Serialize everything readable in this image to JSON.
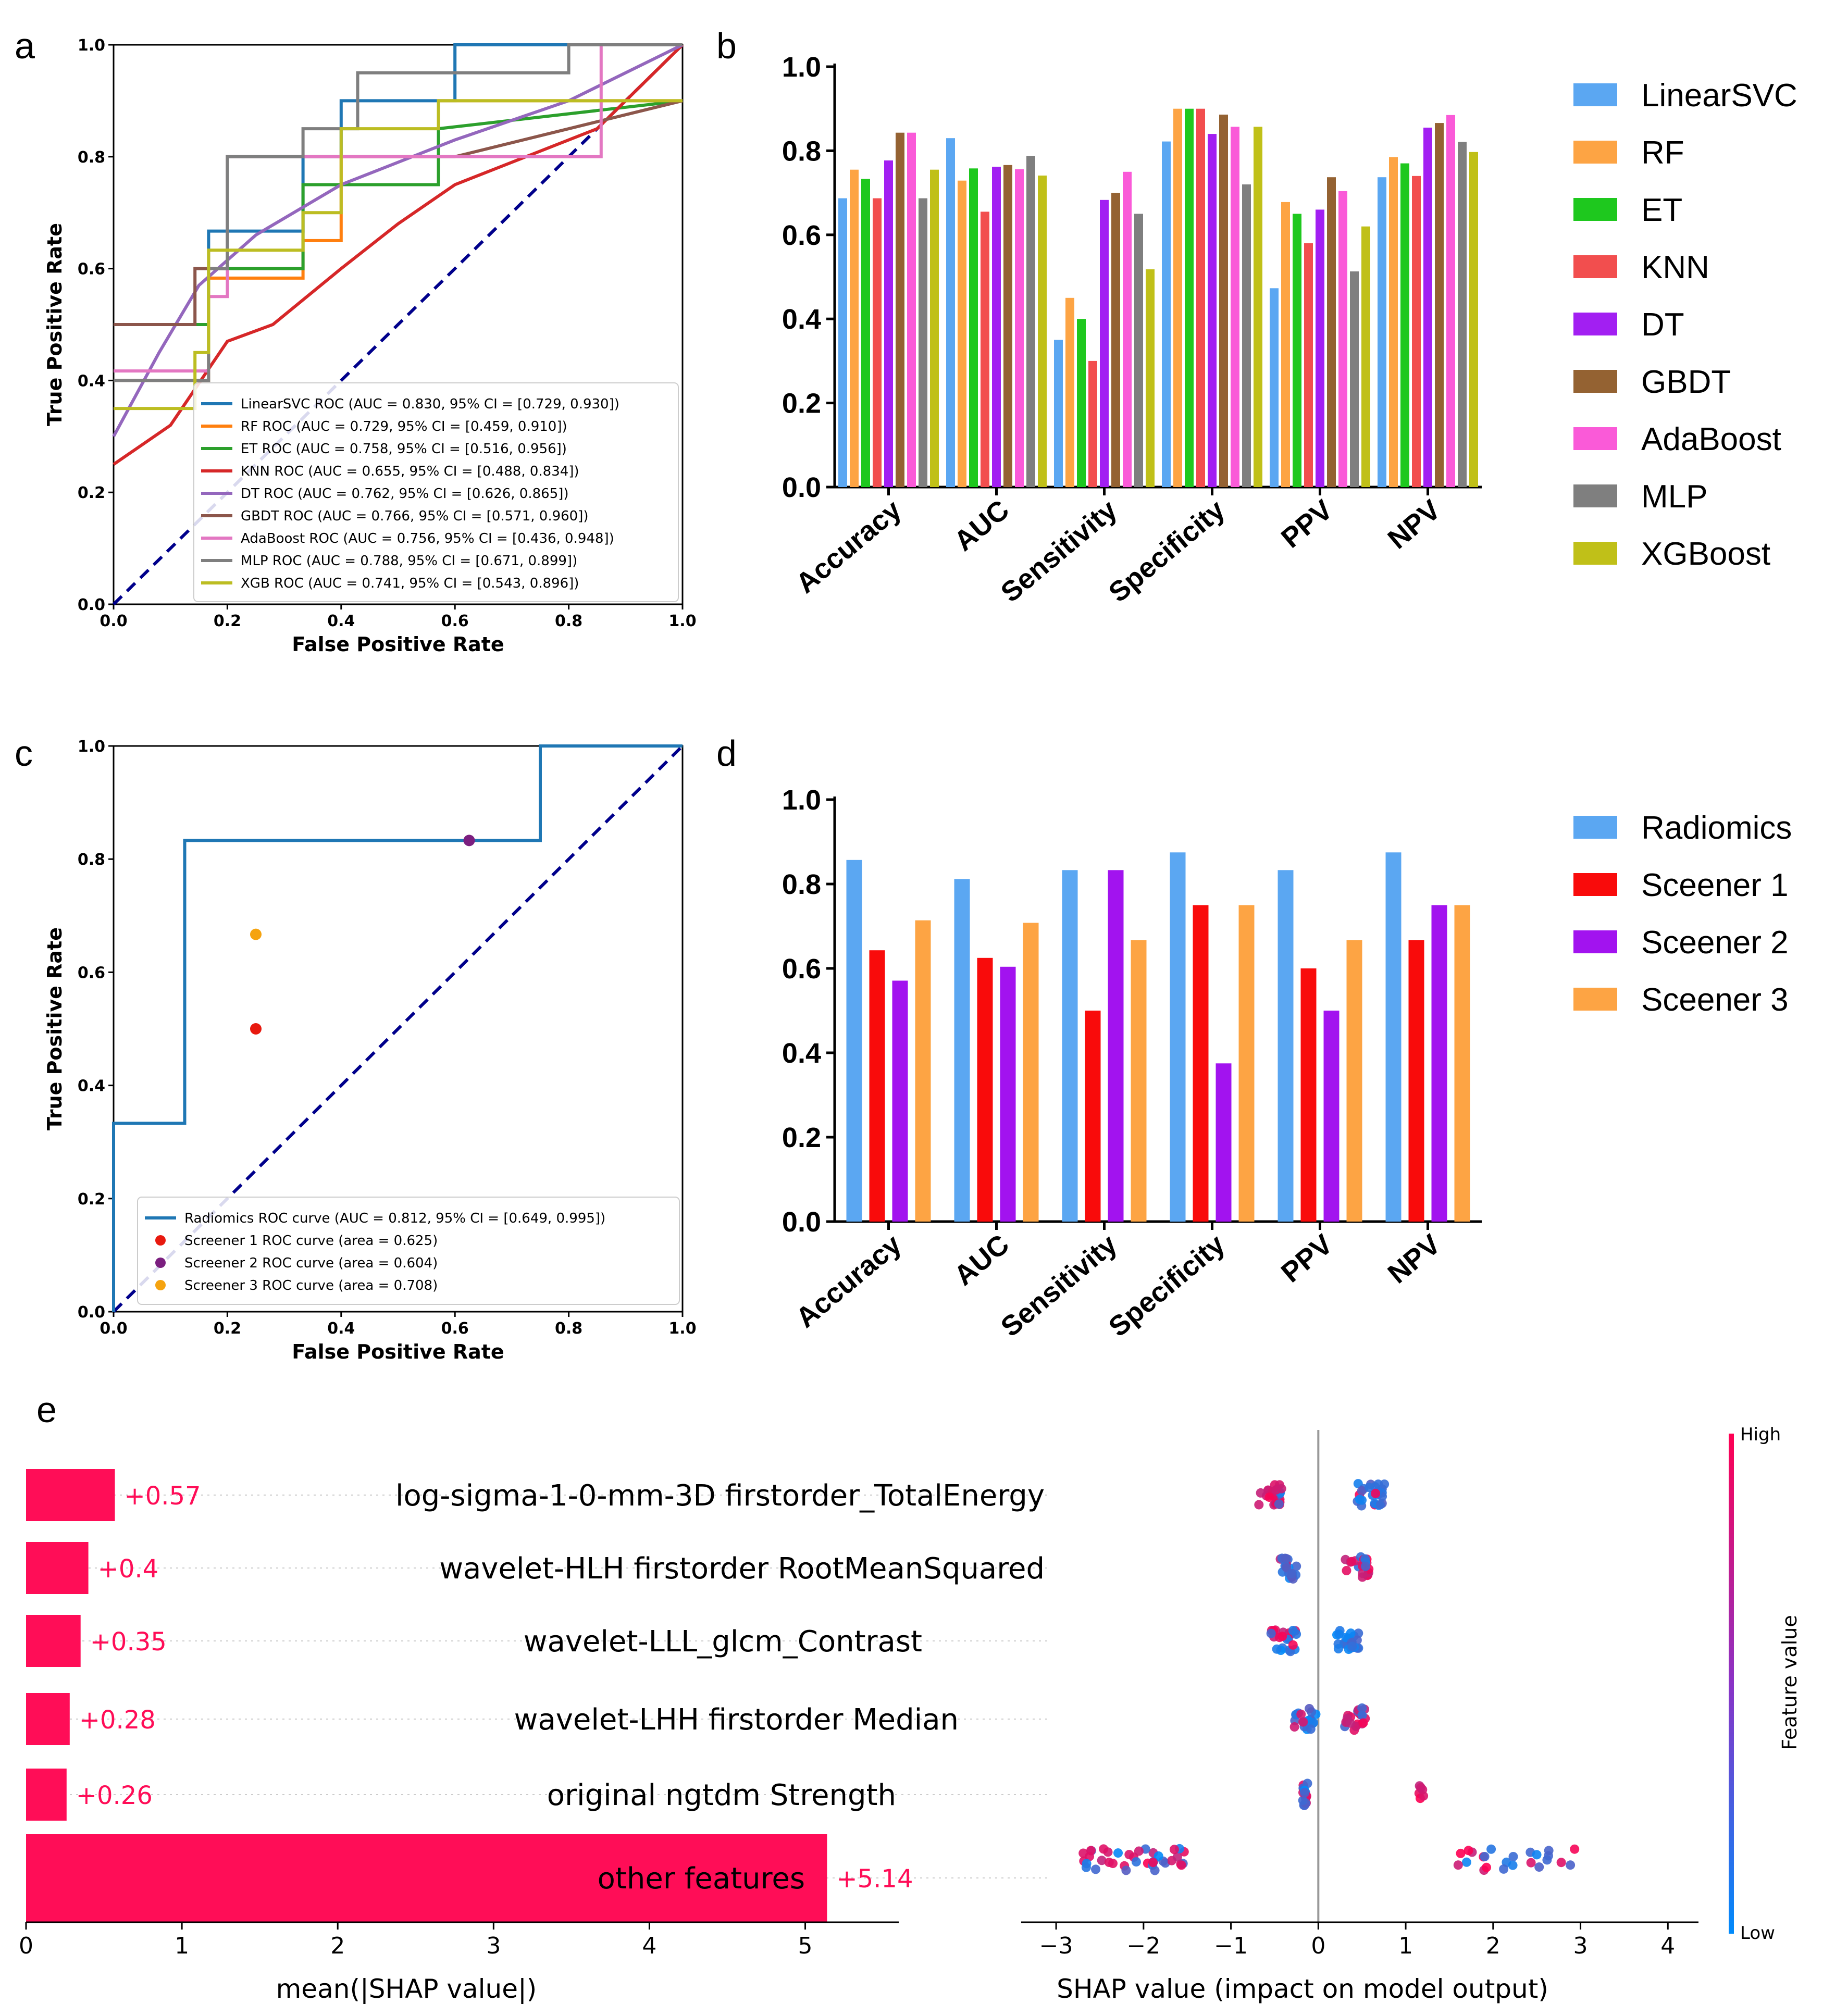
{
  "panel_letters": [
    "a",
    "b",
    "c",
    "d",
    "e"
  ],
  "chart_data": [
    {
      "panel": "a",
      "type": "line",
      "xlabel": "False Positive Rate",
      "ylabel": "True Positive Rate",
      "xlim": [
        0,
        1
      ],
      "ylim": [
        0,
        1
      ],
      "xticks": [
        "0.0",
        "0.2",
        "0.4",
        "0.6",
        "0.8",
        "1.0"
      ],
      "yticks": [
        "0.0",
        "0.2",
        "0.4",
        "0.6",
        "0.8",
        "1.0"
      ],
      "series": [
        {
          "name": "LinearSVC ROC (AUC = 0.830, 95% CI = [0.729, 0.930])",
          "color": "#1f77b4",
          "points": [
            [
              0,
              0.4
            ],
            [
              0.167,
              0.4
            ],
            [
              0.167,
              0.667
            ],
            [
              0.333,
              0.667
            ],
            [
              0.333,
              0.8
            ],
            [
              0.4,
              0.8
            ],
            [
              0.4,
              0.9
            ],
            [
              0.6,
              0.9
            ],
            [
              0.6,
              1.0
            ],
            [
              1.0,
              1.0
            ]
          ]
        },
        {
          "name": "RF ROC (AUC = 0.729, 95% CI = [0.459, 0.910])",
          "color": "#ff7f0e",
          "points": [
            [
              0,
              0.4
            ],
            [
              0.167,
              0.4
            ],
            [
              0.167,
              0.583
            ],
            [
              0.333,
              0.583
            ],
            [
              0.333,
              0.65
            ],
            [
              0.4,
              0.65
            ],
            [
              0.4,
              0.8
            ],
            [
              0.571,
              0.8
            ],
            [
              0.571,
              0.9
            ],
            [
              1.0,
              0.9
            ]
          ]
        },
        {
          "name": "ET ROC (AUC = 0.758, 95% CI = [0.516, 0.956])",
          "color": "#2ca02c",
          "points": [
            [
              0,
              0.5
            ],
            [
              0.167,
              0.5
            ],
            [
              0.167,
              0.6
            ],
            [
              0.333,
              0.6
            ],
            [
              0.333,
              0.75
            ],
            [
              0.571,
              0.75
            ],
            [
              0.571,
              0.85
            ],
            [
              1.0,
              0.9
            ]
          ]
        },
        {
          "name": "KNN ROC (AUC = 0.655, 95% CI = [0.488, 0.834])",
          "color": "#d62728",
          "points": [
            [
              0,
              0.25
            ],
            [
              0.1,
              0.32
            ],
            [
              0.2,
              0.47
            ],
            [
              0.28,
              0.5
            ],
            [
              0.4,
              0.6
            ],
            [
              0.5,
              0.68
            ],
            [
              0.6,
              0.75
            ],
            [
              0.7,
              0.79
            ],
            [
              0.85,
              0.85
            ],
            [
              1.0,
              1.0
            ]
          ]
        },
        {
          "name": "DT ROC (AUC = 0.762, 95% CI = [0.626, 0.865])",
          "color": "#9467bd",
          "points": [
            [
              0,
              0.3
            ],
            [
              0.08,
              0.45
            ],
            [
              0.15,
              0.57
            ],
            [
              0.25,
              0.66
            ],
            [
              0.4,
              0.75
            ],
            [
              0.6,
              0.83
            ],
            [
              0.8,
              0.9
            ],
            [
              1.0,
              1.0
            ]
          ]
        },
        {
          "name": "GBDT ROC (AUC = 0.766, 95% CI = [0.571, 0.960])",
          "color": "#8c564b",
          "points": [
            [
              0,
              0.5
            ],
            [
              0.143,
              0.5
            ],
            [
              0.143,
              0.6
            ],
            [
              0.2,
              0.6
            ],
            [
              0.2,
              0.8
            ],
            [
              0.6,
              0.8
            ],
            [
              1.0,
              0.9
            ]
          ]
        },
        {
          "name": "AdaBoost ROC (AUC = 0.756, 95% CI = [0.436, 0.948])",
          "color": "#e377c2",
          "points": [
            [
              0,
              0.417
            ],
            [
              0.167,
              0.417
            ],
            [
              0.167,
              0.55
            ],
            [
              0.2,
              0.55
            ],
            [
              0.2,
              0.8
            ],
            [
              0.857,
              0.8
            ],
            [
              0.857,
              1.0
            ],
            [
              1.0,
              1.0
            ]
          ]
        },
        {
          "name": "MLP ROC (AUC = 0.788, 95% CI = [0.671, 0.899])",
          "color": "#7f7f7f",
          "points": [
            [
              0,
              0.4
            ],
            [
              0.167,
              0.4
            ],
            [
              0.167,
              0.6
            ],
            [
              0.2,
              0.6
            ],
            [
              0.2,
              0.8
            ],
            [
              0.333,
              0.8
            ],
            [
              0.333,
              0.85
            ],
            [
              0.429,
              0.85
            ],
            [
              0.429,
              0.95
            ],
            [
              0.8,
              0.95
            ],
            [
              0.8,
              1.0
            ],
            [
              1.0,
              1.0
            ]
          ]
        },
        {
          "name": "XGB ROC (AUC = 0.741, 95% CI = [0.543, 0.896])",
          "color": "#bcbd22",
          "points": [
            [
              0,
              0.35
            ],
            [
              0.143,
              0.35
            ],
            [
              0.143,
              0.45
            ],
            [
              0.167,
              0.45
            ],
            [
              0.167,
              0.633
            ],
            [
              0.333,
              0.633
            ],
            [
              0.333,
              0.7
            ],
            [
              0.4,
              0.7
            ],
            [
              0.4,
              0.85
            ],
            [
              0.571,
              0.85
            ],
            [
              0.571,
              0.9
            ],
            [
              1.0,
              0.9
            ]
          ]
        }
      ],
      "diagonal_color": "#00008b"
    },
    {
      "panel": "b",
      "type": "bar",
      "categories": [
        "Accuracy",
        "AUC",
        "Sensitivity",
        "Specificity",
        "PPV",
        "NPV"
      ],
      "ylim": [
        0,
        1
      ],
      "yticks": [
        "0.0",
        "0.2",
        "0.4",
        "0.6",
        "0.8",
        "1.0"
      ],
      "series": [
        {
          "name": "LinearSVC",
          "color": "#5ba7f2",
          "values": [
            0.687,
            0.83,
            0.35,
            0.822,
            0.473,
            0.737
          ]
        },
        {
          "name": "RF",
          "color": "#fda444",
          "values": [
            0.755,
            0.729,
            0.45,
            0.9,
            0.678,
            0.785
          ]
        },
        {
          "name": "ET",
          "color": "#1ec81e",
          "values": [
            0.733,
            0.758,
            0.4,
            0.9,
            0.65,
            0.77
          ]
        },
        {
          "name": "KNN",
          "color": "#f24e4e",
          "values": [
            0.687,
            0.655,
            0.3,
            0.9,
            0.58,
            0.74
          ]
        },
        {
          "name": "DT",
          "color": "#a21ff2",
          "values": [
            0.777,
            0.762,
            0.683,
            0.84,
            0.66,
            0.855
          ]
        },
        {
          "name": "GBDT",
          "color": "#946232",
          "values": [
            0.843,
            0.766,
            0.7,
            0.886,
            0.737,
            0.866
          ]
        },
        {
          "name": "AdaBoost",
          "color": "#fa5ad8",
          "values": [
            0.843,
            0.756,
            0.75,
            0.857,
            0.704,
            0.885
          ]
        },
        {
          "name": "MLP",
          "color": "#7f7f7f",
          "values": [
            0.687,
            0.788,
            0.65,
            0.72,
            0.513,
            0.821
          ]
        },
        {
          "name": "XGBoost",
          "color": "#c0c018",
          "values": [
            0.755,
            0.741,
            0.518,
            0.857,
            0.62,
            0.797
          ]
        }
      ]
    },
    {
      "panel": "c",
      "type": "line",
      "xlabel": "False Positive Rate",
      "ylabel": "True Positive Rate",
      "xlim": [
        0,
        1
      ],
      "ylim": [
        0,
        1
      ],
      "xticks": [
        "0.0",
        "0.2",
        "0.4",
        "0.6",
        "0.8",
        "1.0"
      ],
      "yticks": [
        "0.0",
        "0.2",
        "0.4",
        "0.6",
        "0.8",
        "1.0"
      ],
      "series": [
        {
          "name": "Radiomics ROC curve (AUC = 0.812, 95% CI = [0.649, 0.995])",
          "color": "#1f77b4",
          "points": [
            [
              0,
              0
            ],
            [
              0,
              0.333
            ],
            [
              0.125,
              0.333
            ],
            [
              0.125,
              0.833
            ],
            [
              0.75,
              0.833
            ],
            [
              0.75,
              1.0
            ],
            [
              1.0,
              1.0
            ]
          ]
        }
      ],
      "points": [
        {
          "name": "Screener 1 ROC curve (area = 0.625)",
          "color": "#e8190f",
          "x": 0.25,
          "y": 0.5
        },
        {
          "name": "Screener 2 ROC curve (area = 0.604)",
          "color": "#7b1f7f",
          "x": 0.625,
          "y": 0.833
        },
        {
          "name": "Screener 3 ROC curve (area = 0.708)",
          "color": "#f5a30f",
          "x": 0.25,
          "y": 0.667
        }
      ],
      "diagonal_color": "#00008b"
    },
    {
      "panel": "d",
      "type": "bar",
      "categories": [
        "Accuracy",
        "AUC",
        "Sensitivity",
        "Specificity",
        "PPV",
        "NPV"
      ],
      "ylim": [
        0,
        1
      ],
      "yticks": [
        "0.0",
        "0.2",
        "0.4",
        "0.6",
        "0.8",
        "1.0"
      ],
      "series": [
        {
          "name": "Radiomics",
          "color": "#5ba7f2",
          "values": [
            0.857,
            0.812,
            0.833,
            0.875,
            0.833,
            0.875
          ]
        },
        {
          "name": "Sceener 1",
          "color": "#f90b0b",
          "values": [
            0.643,
            0.625,
            0.5,
            0.75,
            0.6,
            0.667
          ]
        },
        {
          "name": "Sceener 2",
          "color": "#a213ef",
          "values": [
            0.571,
            0.604,
            0.833,
            0.375,
            0.5,
            0.75
          ]
        },
        {
          "name": "Sceener 3",
          "color": "#fda444",
          "values": [
            0.714,
            0.708,
            0.667,
            0.75,
            0.667,
            0.75
          ]
        }
      ]
    },
    {
      "panel": "e-bar",
      "type": "bar",
      "orientation": "horizontal",
      "xlabel": "mean(|SHAP value|)",
      "xlim": [
        0,
        5.6
      ],
      "xticks": [
        "0",
        "1",
        "2",
        "3",
        "4",
        "5"
      ],
      "color": "#ff0d57",
      "categories": [
        "log-sigma-1-0-mm-3D firstorder_TotalEnergy",
        "wavelet-HLH firstorder RootMeanSquared",
        "wavelet-LLL_glcm_Contrast",
        "wavelet-LHH firstorder Median",
        "original ngtdm Strength",
        "other features"
      ],
      "values": [
        0.57,
        0.4,
        0.35,
        0.28,
        0.26,
        5.14
      ],
      "value_labels": [
        "+0.57",
        "+0.4",
        "+0.35",
        "+0.28",
        "+0.26",
        "+5.14"
      ]
    },
    {
      "panel": "e-beeswarm",
      "type": "scatter",
      "xlabel": "SHAP value (impact on model output)",
      "xlim": [
        -3.4,
        4.35
      ],
      "xticks": [
        "−3",
        "−2",
        "−1",
        "0",
        "1",
        "2",
        "3",
        "4"
      ],
      "colorbar": {
        "label": "Feature value",
        "high": "High",
        "low": "Low",
        "high_color": "#ff0052",
        "low_color": "#008bfb"
      },
      "rows": [
        {
          "feature": "log-sigma-1-0-mm-3D firstorder_TotalEnergy",
          "clusters": [
            {
              "center": -0.55,
              "spread": 0.13,
              "n": 26,
              "color_mix": 0.7
            },
            {
              "center": 0.6,
              "spread": 0.17,
              "n": 26,
              "color_mix": 0.1
            }
          ]
        },
        {
          "feature": "wavelet-HLH firstorder RootMeanSquared",
          "clusters": [
            {
              "center": -0.35,
              "spread": 0.1,
              "n": 20,
              "color_mix": 0.1
            },
            {
              "center": 0.45,
              "spread": 0.14,
              "n": 20,
              "color_mix": 0.8
            }
          ]
        },
        {
          "feature": "wavelet-LLL_glcm_Contrast",
          "clusters": [
            {
              "center": -0.4,
              "spread": 0.15,
              "n": 22,
              "color_mix": 0.5
            },
            {
              "center": 0.35,
              "spread": 0.15,
              "n": 22,
              "color_mix": 0.1
            }
          ]
        },
        {
          "feature": "wavelet-LHH firstorder Median",
          "clusters": [
            {
              "center": -0.15,
              "spread": 0.13,
              "n": 20,
              "color_mix": 0.3
            },
            {
              "center": 0.42,
              "spread": 0.12,
              "n": 20,
              "color_mix": 0.8
            }
          ]
        },
        {
          "feature": "original ngtdm Strength",
          "clusters": [
            {
              "center": -0.15,
              "spread": 0.03,
              "n": 18,
              "color_mix": 0.3
            },
            {
              "center": 1.18,
              "spread": 0.03,
              "n": 6,
              "color_mix": 0.8
            }
          ]
        },
        {
          "feature": "other features",
          "clusters": [
            {
              "center": -2.1,
              "spread": 0.6,
              "n": 38,
              "color_mix": 0.6
            },
            {
              "center": 2.3,
              "spread": 0.7,
              "n": 24,
              "color_mix": 0.6
            }
          ]
        }
      ]
    }
  ]
}
